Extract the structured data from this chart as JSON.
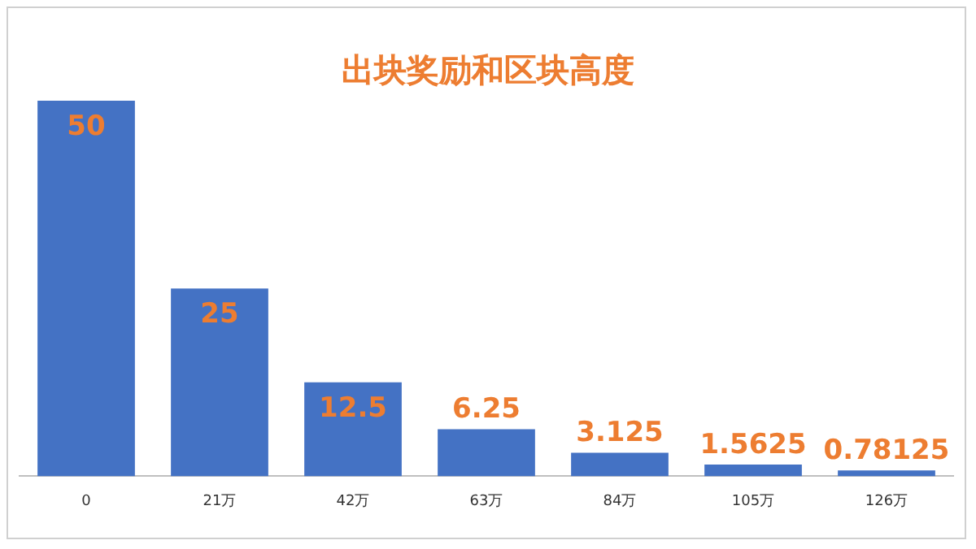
{
  "chart_data": {
    "type": "bar",
    "title": "出块奖励和区块高度",
    "categories": [
      "0",
      "21万",
      "42万",
      "63万",
      "84万",
      "105万",
      "126万"
    ],
    "values": [
      50,
      25,
      12.5,
      6.25,
      3.125,
      1.5625,
      0.78125
    ],
    "color": "#4472c4",
    "data_labels": true,
    "grid": false,
    "legend": false
  }
}
